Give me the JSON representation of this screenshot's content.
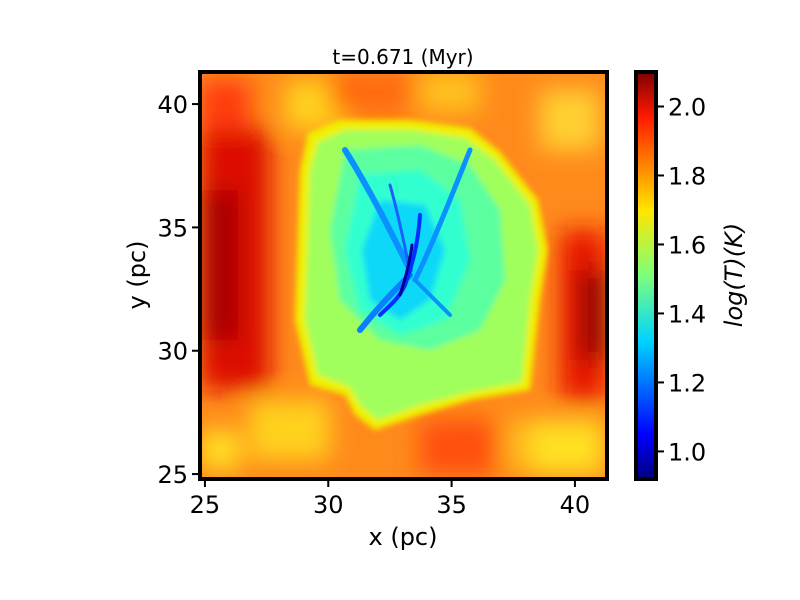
{
  "chart_data": {
    "type": "heatmap",
    "title": "t=0.671 (Myr)",
    "xlabel": "x (pc)",
    "ylabel": "y (pc)",
    "xlim": [
      24.8,
      41.3
    ],
    "ylim": [
      24.8,
      41.3
    ],
    "xticks": [
      25,
      30,
      35,
      40
    ],
    "yticks": [
      25,
      30,
      35,
      40
    ],
    "colorbar": {
      "label": "log(T)(K)",
      "colormap": "jet",
      "range": [
        0.92,
        2.1
      ],
      "ticks": [
        "1.0",
        "1.2",
        "1.4",
        "1.6",
        "1.8",
        "2.0"
      ],
      "tick_values": [
        1.0,
        1.2,
        1.4,
        1.6,
        1.8,
        2.0
      ]
    },
    "regions": [
      {
        "name": "ambient",
        "logT": 1.78
      },
      {
        "name": "left-hot-band",
        "x": [
          25,
          27.5
        ],
        "y": [
          29,
          38
        ],
        "logT": 2.0
      },
      {
        "name": "right-hot-band",
        "x": [
          39.5,
          41.3
        ],
        "y": [
          29,
          35
        ],
        "logT": 2.05
      },
      {
        "name": "cold-core",
        "x": [
          28.8,
          38.5
        ],
        "y": [
          27,
          39.2
        ],
        "logT": 1.45
      },
      {
        "name": "filament",
        "x": [
          32,
          34
        ],
        "y": [
          31.5,
          35.5
        ],
        "logT": 1.1
      }
    ]
  }
}
